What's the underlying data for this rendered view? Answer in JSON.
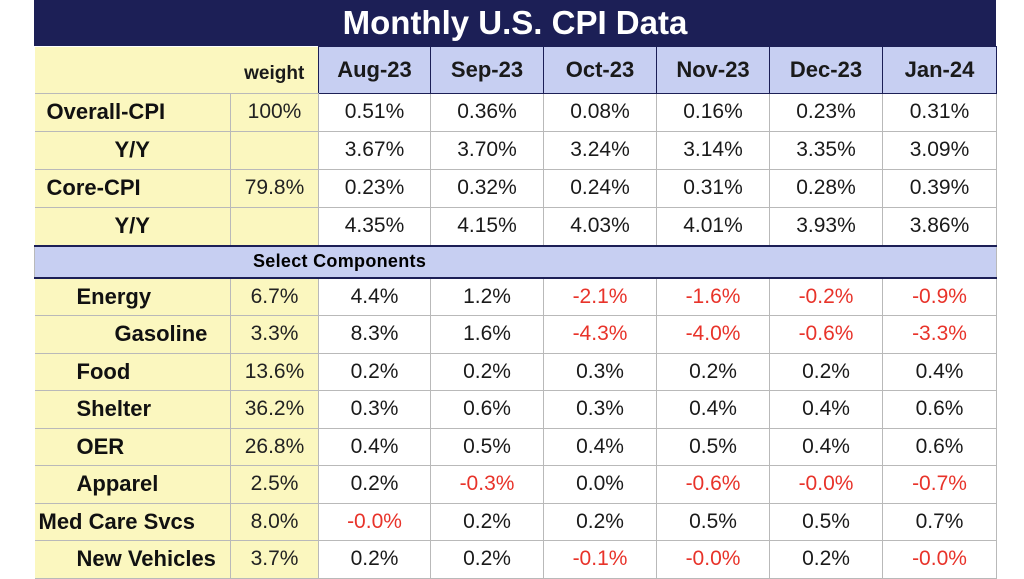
{
  "title": "Monthly U.S. CPI Data",
  "chart_data": {
    "type": "table",
    "title": "Monthly U.S. CPI Data",
    "weight_header": "weight",
    "columns": [
      "Aug-23",
      "Sep-23",
      "Oct-23",
      "Nov-23",
      "Dec-23",
      "Jan-24"
    ],
    "negative_color": "#e8332a",
    "header_color": "#1c1f56",
    "label_bg_color": "#fbf7bf",
    "column_header_bg_color": "#c7cff2",
    "top_rows": [
      {
        "label": "Overall-CPI",
        "weight": "100%",
        "values": [
          "0.51%",
          "0.36%",
          "0.08%",
          "0.16%",
          "0.23%",
          "0.31%"
        ]
      },
      {
        "label": "Y/Y",
        "weight": "",
        "values": [
          "3.67%",
          "3.70%",
          "3.24%",
          "3.14%",
          "3.35%",
          "3.09%"
        ]
      },
      {
        "label": "Core-CPI",
        "weight": "79.8%",
        "values": [
          "0.23%",
          "0.32%",
          "0.24%",
          "0.31%",
          "0.28%",
          "0.39%"
        ]
      },
      {
        "label": "Y/Y",
        "weight": "",
        "values": [
          "4.35%",
          "4.15%",
          "4.03%",
          "4.01%",
          "3.93%",
          "3.86%"
        ]
      }
    ],
    "section_label": "Select Components",
    "component_rows": [
      {
        "label": "Energy",
        "weight": "6.7%",
        "values": [
          "4.4%",
          "1.2%",
          "-2.1%",
          "-1.6%",
          "-0.2%",
          "-0.9%"
        ]
      },
      {
        "label": "Gasoline",
        "weight": "3.3%",
        "values": [
          "8.3%",
          "1.6%",
          "-4.3%",
          "-4.0%",
          "-0.6%",
          "-3.3%"
        ]
      },
      {
        "label": "Food",
        "weight": "13.6%",
        "values": [
          "0.2%",
          "0.2%",
          "0.3%",
          "0.2%",
          "0.2%",
          "0.4%"
        ]
      },
      {
        "label": "Shelter",
        "weight": "36.2%",
        "values": [
          "0.3%",
          "0.6%",
          "0.3%",
          "0.4%",
          "0.4%",
          "0.6%"
        ]
      },
      {
        "label": "OER",
        "weight": "26.8%",
        "values": [
          "0.4%",
          "0.5%",
          "0.4%",
          "0.5%",
          "0.4%",
          "0.6%"
        ]
      },
      {
        "label": "Apparel",
        "weight": "2.5%",
        "values": [
          "0.2%",
          "-0.3%",
          "0.0%",
          "-0.6%",
          "-0.0%",
          "-0.7%"
        ]
      },
      {
        "label": "Med Care Svcs",
        "weight": "8.0%",
        "values": [
          "-0.0%",
          "0.2%",
          "0.2%",
          "0.5%",
          "0.5%",
          "0.7%"
        ]
      },
      {
        "label": "New Vehicles",
        "weight": "3.7%",
        "values": [
          "0.2%",
          "0.2%",
          "-0.1%",
          "-0.0%",
          "0.2%",
          "-0.0%"
        ]
      }
    ]
  }
}
